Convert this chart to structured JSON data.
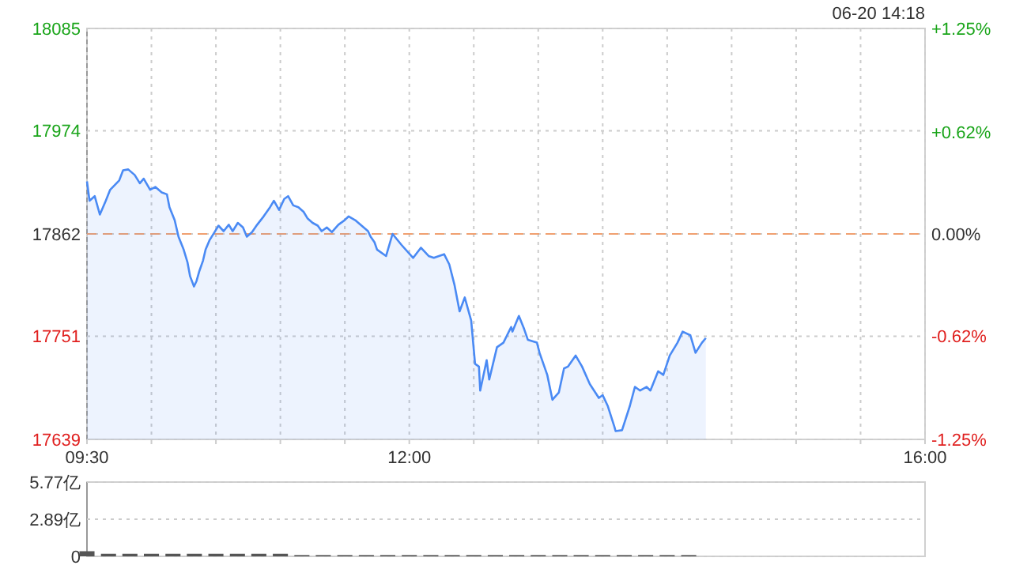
{
  "chart_data": [
    {
      "type": "area",
      "subtitle": "06-20 14:18",
      "x": [
        9.5,
        9.52,
        9.56,
        9.6,
        9.64,
        9.68,
        9.75,
        9.78,
        9.82,
        9.87,
        9.91,
        9.94,
        9.99,
        10.03,
        10.08,
        10.12,
        10.14,
        10.18,
        10.21,
        10.25,
        10.28,
        10.3,
        10.33,
        10.35,
        10.37,
        10.4,
        10.42,
        10.45,
        10.49,
        10.52,
        10.56,
        10.6,
        10.63,
        10.67,
        10.71,
        10.74,
        10.78,
        10.82,
        10.87,
        10.92,
        10.95,
        10.99,
        11.03,
        11.06,
        11.1,
        11.14,
        11.18,
        11.21,
        11.25,
        11.29,
        11.32,
        11.36,
        11.4,
        11.45,
        11.49,
        11.53,
        11.58,
        11.63,
        11.68,
        11.7,
        11.73,
        11.75,
        11.82,
        11.87,
        11.94,
        12.03,
        12.09,
        12.15,
        12.19,
        12.27,
        12.31,
        12.35,
        12.39,
        12.43,
        12.48,
        12.51,
        12.54,
        12.55,
        12.6,
        12.62,
        12.68,
        12.73,
        12.79,
        12.8,
        12.85,
        12.89,
        12.92,
        12.99,
        13.01,
        13.07,
        13.11,
        13.16,
        13.2,
        13.23,
        13.29,
        13.34,
        13.4,
        13.47,
        13.5,
        13.54,
        13.59,
        13.6,
        13.65,
        13.71,
        13.75,
        13.79,
        13.84,
        13.87,
        13.93,
        13.97,
        14.02,
        14.08,
        14.12,
        14.18,
        14.22,
        14.27,
        14.3
      ],
      "series": [
        {
          "color": "#4a8af4",
          "values": [
            17919,
            17898,
            17903,
            17883,
            17896,
            17910,
            17920,
            17931,
            17932,
            17926,
            17917,
            17922,
            17910,
            17913,
            17907,
            17905,
            17891,
            17877,
            17859,
            17845,
            17831,
            17816,
            17805,
            17811,
            17821,
            17833,
            17845,
            17855,
            17864,
            17871,
            17865,
            17872,
            17865,
            17874,
            17869,
            17859,
            17864,
            17872,
            17881,
            17891,
            17898,
            17888,
            17900,
            17903,
            17893,
            17891,
            17886,
            17879,
            17874,
            17871,
            17865,
            17869,
            17864,
            17872,
            17876,
            17881,
            17877,
            17871,
            17865,
            17859,
            17853,
            17845,
            17838,
            17862,
            17850,
            17836,
            17847,
            17838,
            17836,
            17840,
            17829,
            17807,
            17778,
            17793,
            17768,
            17721,
            17718,
            17692,
            17725,
            17704,
            17739,
            17744,
            17761,
            17756,
            17773,
            17759,
            17747,
            17744,
            17733,
            17709,
            17682,
            17690,
            17716,
            17718,
            17730,
            17718,
            17699,
            17684,
            17687,
            17675,
            17653,
            17648,
            17649,
            17675,
            17696,
            17692,
            17696,
            17692,
            17713,
            17709,
            17730,
            17744,
            17756,
            17752,
            17733,
            17744,
            17749
          ]
        }
      ],
      "xlim": [
        9.5,
        16
      ],
      "xticks": [
        {
          "value": 9.5,
          "label": "09:30"
        },
        {
          "value": 10,
          "label": null
        },
        {
          "value": 10.5,
          "label": null
        },
        {
          "value": 11,
          "label": null
        },
        {
          "value": 11.5,
          "label": null
        },
        {
          "value": 12,
          "label": "12:00"
        },
        {
          "value": 12.5,
          "label": null
        },
        {
          "value": 13,
          "label": null
        },
        {
          "value": 13.5,
          "label": null
        },
        {
          "value": 14,
          "label": null
        },
        {
          "value": 14.5,
          "label": null
        },
        {
          "value": 15,
          "label": null
        },
        {
          "value": 15.5,
          "label": null
        },
        {
          "value": 16,
          "label": "16:00"
        }
      ],
      "ylim": [
        17639,
        18085
      ],
      "yticks": [
        17639,
        17751,
        17862,
        17974,
        18085
      ],
      "y2lim": [
        -1.25,
        1.25
      ],
      "y2ticks": [
        {
          "value": -1.25,
          "label": "-1.25%"
        },
        {
          "value": -0.62,
          "label": "-0.62%"
        },
        {
          "value": 0,
          "label": "0.00%"
        },
        {
          "value": 0.62,
          "label": "+0.62%"
        },
        {
          "value": 1.25,
          "label": "+1.25%"
        }
      ],
      "ref_lines": [
        {
          "axis": "y",
          "value": 17862,
          "color": "#f0a070",
          "line_style": "dashed"
        }
      ],
      "grid": true
    },
    {
      "type": "bar",
      "x": [
        9.5,
        9.667,
        9.833,
        10,
        10.167,
        10.333,
        10.5,
        10.667,
        10.833,
        11,
        11.167,
        11.333,
        11.5,
        11.667,
        11.833,
        12,
        12.167,
        12.333,
        12.5,
        12.667,
        12.833,
        13,
        13.167,
        13.333,
        13.5,
        13.667,
        13.833,
        14,
        14.167
      ],
      "series": [
        {
          "color": "#555555",
          "values": [
            0.4,
            0.2,
            0.2,
            0.2,
            0.2,
            0.2,
            0.2,
            0.2,
            0.2,
            0.2,
            0.1,
            0.1,
            0.1,
            0.1,
            0.1,
            0.1,
            0.1,
            0.1,
            0.1,
            0.1,
            0.1,
            0.1,
            0.1,
            0.1,
            0.1,
            0.1,
            0.1,
            0.1,
            0.1
          ]
        }
      ],
      "xlim": [
        9.5,
        16
      ],
      "ylim": [
        0,
        5.77
      ],
      "yticks": [
        0,
        {
          "value": 2.89,
          "label": "2.89亿"
        },
        {
          "value": 5.77,
          "label": "5.77亿"
        }
      ],
      "tick_labels": "y",
      "grid": "y"
    }
  ]
}
